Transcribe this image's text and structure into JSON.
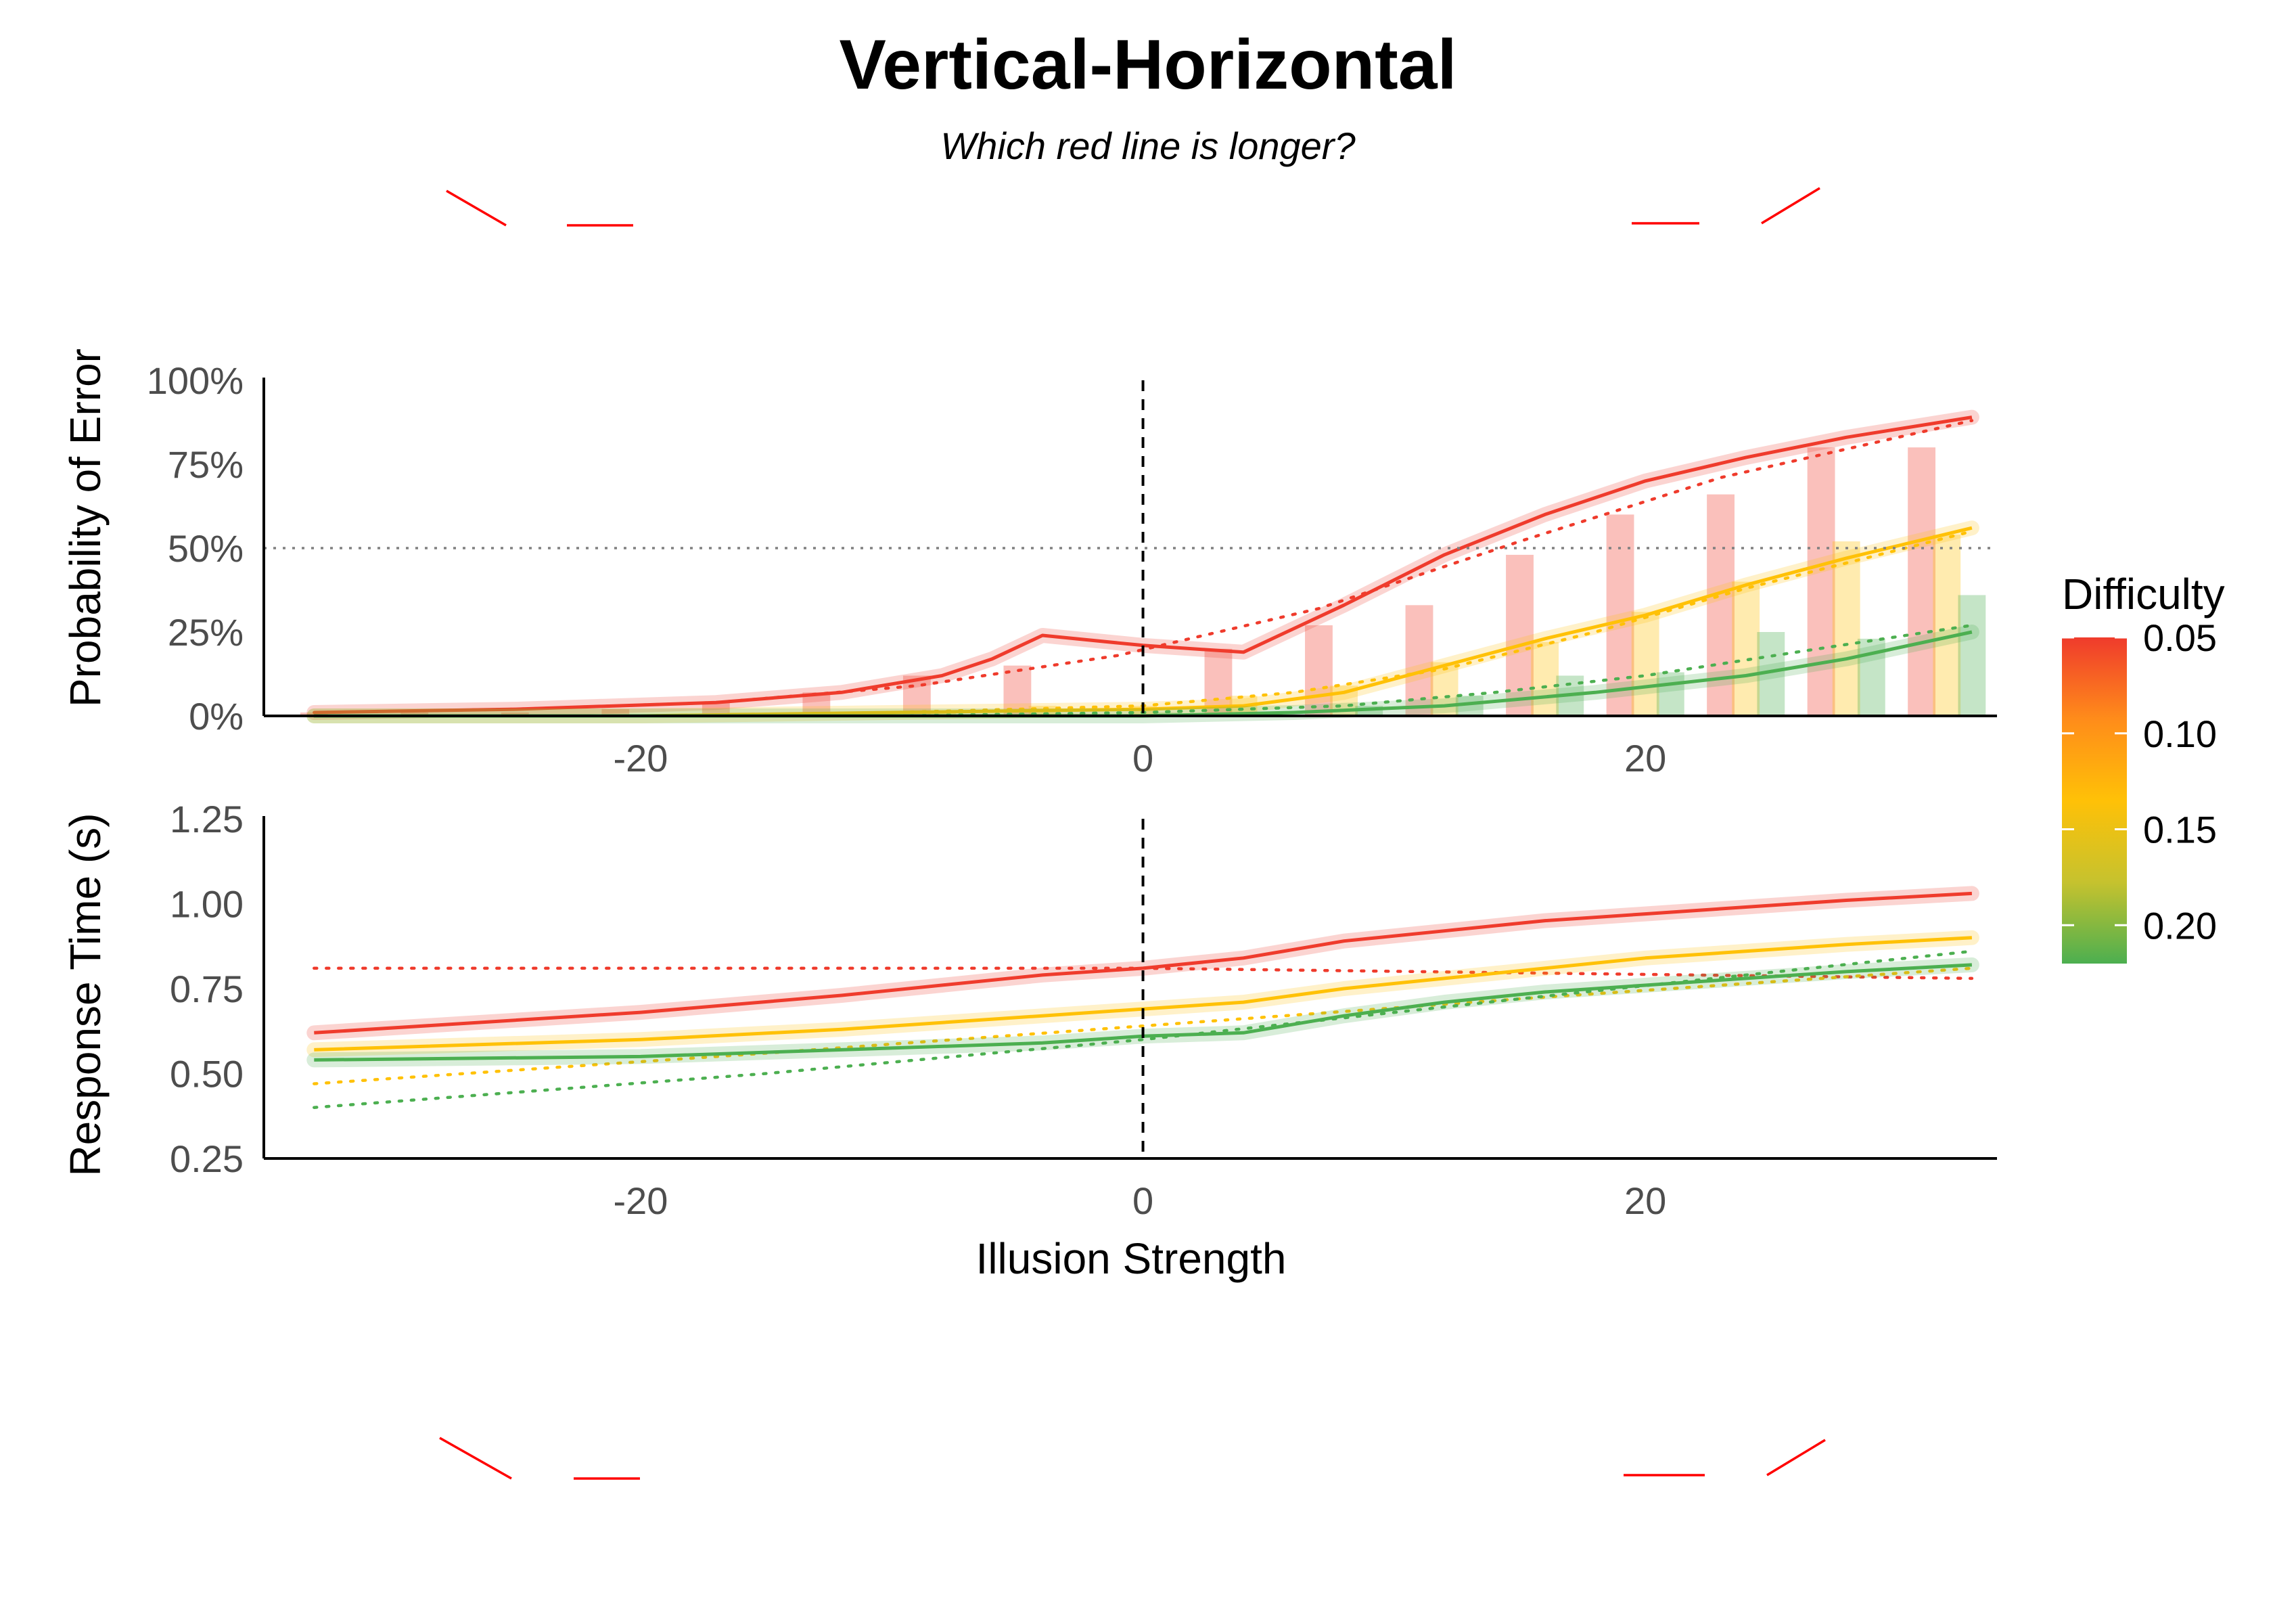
{
  "title": "Vertical-Horizontal",
  "subtitle": "Which red line is longer?",
  "colors": {
    "red": "#EF3B2C",
    "orange": "#FFA726",
    "yellow": "#FFC107",
    "green": "#4CAF50",
    "illusion_line": "#FF0000",
    "ref_line": "#808080"
  },
  "chart_data": [
    {
      "type": "bar+line",
      "panel": "top",
      "ylabel": "Probability of Error",
      "xlim": [
        -35,
        34
      ],
      "ylim": [
        0,
        1
      ],
      "x_ticks": [
        -20,
        0,
        20
      ],
      "x_tick_labels": [
        "-20",
        "0",
        "20"
      ],
      "y_ticks": [
        0,
        0.25,
        0.5,
        0.75,
        1
      ],
      "y_tick_labels": [
        "0%",
        "25%",
        "50%",
        "75%",
        "100%"
      ],
      "ref_hline": 0.5,
      "ref_vline": 0,
      "bars": [
        {
          "difficulty": 0.05,
          "color": "#EF3B2C",
          "x": [
            -33,
            -29,
            -25,
            -21,
            -17,
            -13,
            -9,
            -5,
            -1,
            3,
            7,
            11,
            15,
            19,
            23,
            27,
            31
          ],
          "values": [
            0.01,
            0.01,
            0.01,
            0.02,
            0.04,
            0.07,
            0.12,
            0.15,
            0.0,
            0.2,
            0.27,
            0.33,
            0.48,
            0.6,
            0.66,
            0.8,
            0.8
          ]
        },
        {
          "difficulty": 0.125,
          "color": "#FFC107",
          "x": [
            -32,
            -28,
            -24,
            -20,
            -16,
            -12,
            -8,
            -4,
            0,
            4,
            8,
            12,
            16,
            20,
            24,
            28,
            32
          ],
          "values": [
            0.0,
            0.0,
            0.0,
            0.0,
            0.01,
            0.01,
            0.01,
            0.03,
            0.03,
            0.06,
            0.09,
            0.16,
            0.22,
            0.31,
            0.4,
            0.52,
            0.54
          ]
        },
        {
          "difficulty": 0.2,
          "color": "#4CAF50",
          "x": [
            -31,
            -27,
            -23,
            -19,
            -15,
            -11,
            -7,
            -3,
            1,
            5,
            9,
            13,
            17,
            21,
            25,
            29,
            33
          ],
          "values": [
            0.0,
            0.0,
            0.0,
            0.0,
            0.0,
            0.0,
            0.0,
            0.0,
            0.01,
            0.01,
            0.03,
            0.06,
            0.12,
            0.13,
            0.25,
            0.23,
            0.36
          ]
        }
      ],
      "series": [
        {
          "difficulty": 0.05,
          "kind": "observed",
          "color": "#EF3B2C",
          "x": [
            -33,
            -25,
            -17,
            -12,
            -8,
            -6,
            -4,
            0,
            4,
            8,
            12,
            16,
            20,
            24,
            28,
            33
          ],
          "y": [
            0.01,
            0.02,
            0.04,
            0.07,
            0.12,
            0.17,
            0.24,
            0.21,
            0.19,
            0.33,
            0.48,
            0.6,
            0.7,
            0.77,
            0.83,
            0.89
          ]
        },
        {
          "difficulty": 0.05,
          "kind": "model",
          "color": "#EF3B2C",
          "x": [
            -33,
            -25,
            -17,
            -9,
            -1,
            7,
            15,
            23,
            33
          ],
          "y": [
            0.01,
            0.02,
            0.04,
            0.09,
            0.18,
            0.32,
            0.52,
            0.71,
            0.88
          ]
        },
        {
          "difficulty": 0.125,
          "kind": "observed",
          "color": "#FFC107",
          "x": [
            -33,
            -20,
            -10,
            0,
            4,
            8,
            12,
            16,
            20,
            24,
            28,
            33
          ],
          "y": [
            0.0,
            0.0,
            0.01,
            0.02,
            0.03,
            0.07,
            0.15,
            0.23,
            0.3,
            0.39,
            0.47,
            0.56
          ]
        },
        {
          "difficulty": 0.125,
          "kind": "model",
          "color": "#FFC107",
          "x": [
            -33,
            -20,
            -10,
            0,
            6,
            12,
            18,
            24,
            33
          ],
          "y": [
            0.0,
            0.0,
            0.01,
            0.03,
            0.07,
            0.14,
            0.25,
            0.38,
            0.55
          ]
        },
        {
          "difficulty": 0.2,
          "kind": "observed",
          "color": "#4CAF50",
          "x": [
            -33,
            -20,
            -10,
            0,
            6,
            12,
            18,
            24,
            28,
            33
          ],
          "y": [
            0.0,
            0.0,
            0.0,
            0.0,
            0.01,
            0.03,
            0.07,
            0.12,
            0.17,
            0.25
          ]
        },
        {
          "difficulty": 0.2,
          "kind": "model",
          "color": "#4CAF50",
          "x": [
            -33,
            -20,
            -10,
            0,
            8,
            14,
            20,
            26,
            33
          ],
          "y": [
            0.0,
            0.0,
            0.0,
            0.01,
            0.03,
            0.07,
            0.12,
            0.19,
            0.27
          ]
        }
      ]
    },
    {
      "type": "line",
      "panel": "bottom",
      "xlabel": "Illusion Strength",
      "ylabel": "Response Time (s)",
      "xlim": [
        -35,
        34
      ],
      "ylim": [
        0.25,
        1.25
      ],
      "x_ticks": [
        -20,
        0,
        20
      ],
      "x_tick_labels": [
        "-20",
        "0",
        "20"
      ],
      "y_ticks": [
        0.25,
        0.5,
        0.75,
        1.0,
        1.25
      ],
      "y_tick_labels": [
        "0.25",
        "0.50",
        "0.75",
        "1.00",
        "1.25"
      ],
      "ref_vline": 0,
      "series": [
        {
          "difficulty": 0.05,
          "kind": "observed",
          "color": "#EF3B2C",
          "x": [
            -33,
            -20,
            -12,
            -4,
            0,
            4,
            8,
            12,
            16,
            20,
            24,
            28,
            33
          ],
          "y": [
            0.62,
            0.68,
            0.73,
            0.79,
            0.81,
            0.84,
            0.89,
            0.92,
            0.95,
            0.97,
            0.99,
            1.01,
            1.03
          ]
        },
        {
          "difficulty": 0.05,
          "kind": "model",
          "color": "#EF3B2C",
          "x": [
            -33,
            0,
            33
          ],
          "y": [
            0.81,
            0.81,
            0.78
          ]
        },
        {
          "difficulty": 0.125,
          "kind": "observed",
          "color": "#FFC107",
          "x": [
            -33,
            -20,
            -12,
            -4,
            0,
            4,
            8,
            12,
            16,
            20,
            24,
            28,
            33
          ],
          "y": [
            0.57,
            0.6,
            0.63,
            0.67,
            0.69,
            0.71,
            0.75,
            0.78,
            0.81,
            0.84,
            0.86,
            0.88,
            0.9
          ]
        },
        {
          "difficulty": 0.125,
          "kind": "model",
          "color": "#FFC107",
          "x": [
            -33,
            -15,
            0,
            15,
            33
          ],
          "y": [
            0.47,
            0.56,
            0.64,
            0.72,
            0.81
          ]
        },
        {
          "difficulty": 0.2,
          "kind": "observed",
          "color": "#4CAF50",
          "x": [
            -33,
            -20,
            -12,
            -4,
            0,
            4,
            8,
            12,
            16,
            20,
            24,
            28,
            33
          ],
          "y": [
            0.54,
            0.55,
            0.57,
            0.59,
            0.61,
            0.62,
            0.67,
            0.71,
            0.74,
            0.76,
            0.78,
            0.8,
            0.82
          ]
        },
        {
          "difficulty": 0.2,
          "kind": "model",
          "color": "#4CAF50",
          "x": [
            -33,
            -15,
            0,
            15,
            33
          ],
          "y": [
            0.4,
            0.5,
            0.6,
            0.72,
            0.86
          ]
        }
      ]
    }
  ],
  "legend": {
    "title": "Difficulty",
    "type": "gradient",
    "range": [
      0.05,
      0.22
    ],
    "labels": [
      "0.05",
      "0.10",
      "0.15",
      "0.20"
    ],
    "label_values": [
      0.05,
      0.1,
      0.15,
      0.2
    ],
    "stops": [
      "#EF3B2C",
      "#FF8C1A",
      "#FFC107",
      "#C6C22E",
      "#4CAF50"
    ]
  }
}
